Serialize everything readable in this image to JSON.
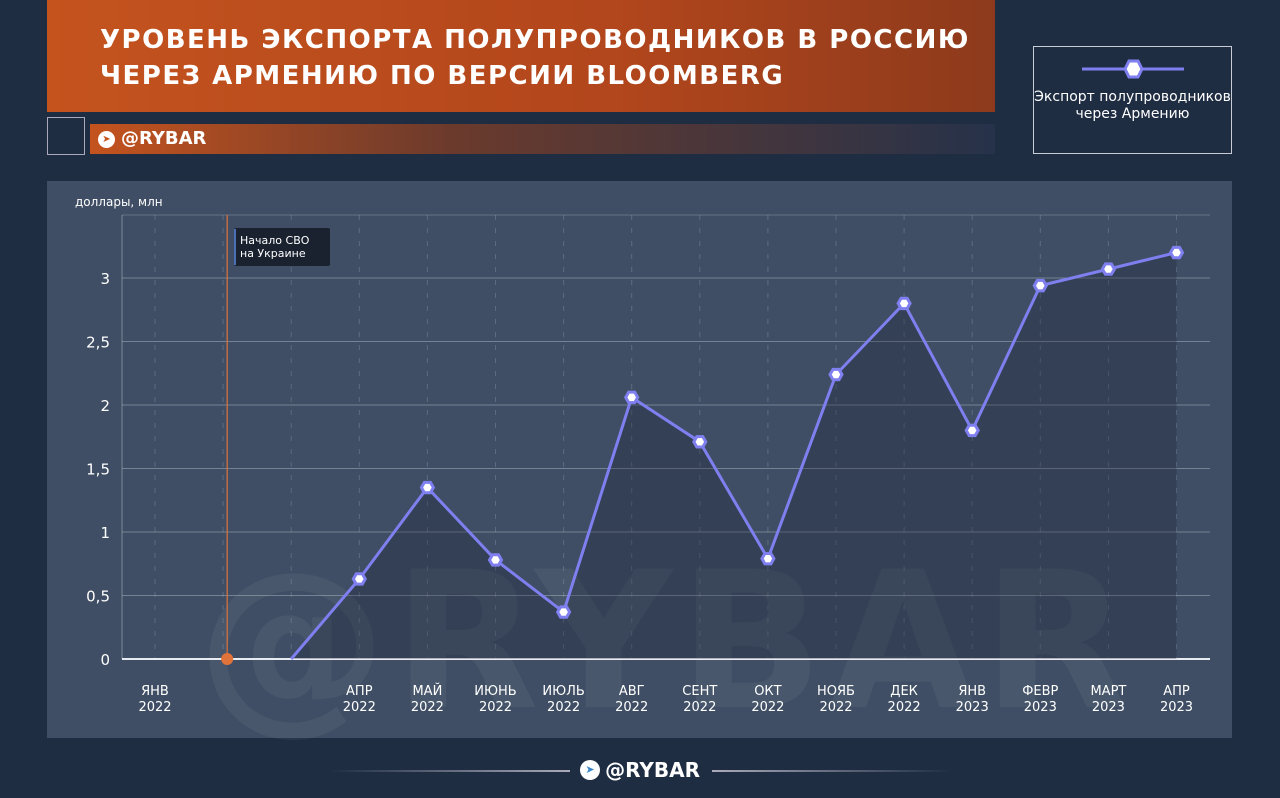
{
  "header": {
    "title_line1": "УРОВЕНЬ ЭКСПОРТА ПОЛУПРОВОДНИКОВ В РОССИЮ",
    "title_line2": "ЧЕРЕЗ АРМЕНИЮ ПО ВЕРСИИ BLOOMBERG",
    "brand": "@RYBAR",
    "icon": "telegram-icon"
  },
  "footer": {
    "brand": "@RYBAR"
  },
  "watermark": "@RYBAR",
  "colors": {
    "series": "#7f7ff0",
    "event": "#e0733a",
    "accent": "#c4531e"
  },
  "chart_data": {
    "type": "line",
    "ylabel": "доллары, млн",
    "ylim": [
      0,
      3.3
    ],
    "yticks": [
      "0",
      "0,5",
      "1",
      "1,5",
      "2",
      "2,5",
      "3"
    ],
    "ytick_values": [
      0,
      0.5,
      1,
      1.5,
      2,
      2.5,
      3
    ],
    "grid": true,
    "legend_position": "top-right",
    "categories": [
      {
        "m": "ЯНВ",
        "y": "2022"
      },
      {
        "m": "",
        "y": ""
      },
      {
        "m": "",
        "y": ""
      },
      {
        "m": "АПР",
        "y": "2022"
      },
      {
        "m": "МАЙ",
        "y": "2022"
      },
      {
        "m": "ИЮНЬ",
        "y": "2022"
      },
      {
        "m": "ИЮЛЬ",
        "y": "2022"
      },
      {
        "m": "АВГ",
        "y": "2022"
      },
      {
        "m": "СЕНТ",
        "y": "2022"
      },
      {
        "m": "ОКТ",
        "y": "2022"
      },
      {
        "m": "НОЯБ",
        "y": "2022"
      },
      {
        "m": "ДЕК",
        "y": "2022"
      },
      {
        "m": "ЯНВ",
        "y": "2023"
      },
      {
        "m": "ФЕВР",
        "y": "2023"
      },
      {
        "m": "МАРТ",
        "y": "2023"
      },
      {
        "m": "АПР",
        "y": "2023"
      }
    ],
    "series": [
      {
        "name": "Экспорт полупроводников через Армению",
        "values": [
          null,
          null,
          0,
          0.63,
          1.35,
          0.78,
          0.37,
          2.06,
          1.71,
          0.79,
          2.24,
          2.8,
          1.8,
          2.94,
          3.07,
          3.2
        ]
      }
    ],
    "annotation": {
      "text_line1": "Начало СВО",
      "text_line2": "на Украине",
      "at_month": "ФЕВ 2022"
    }
  }
}
